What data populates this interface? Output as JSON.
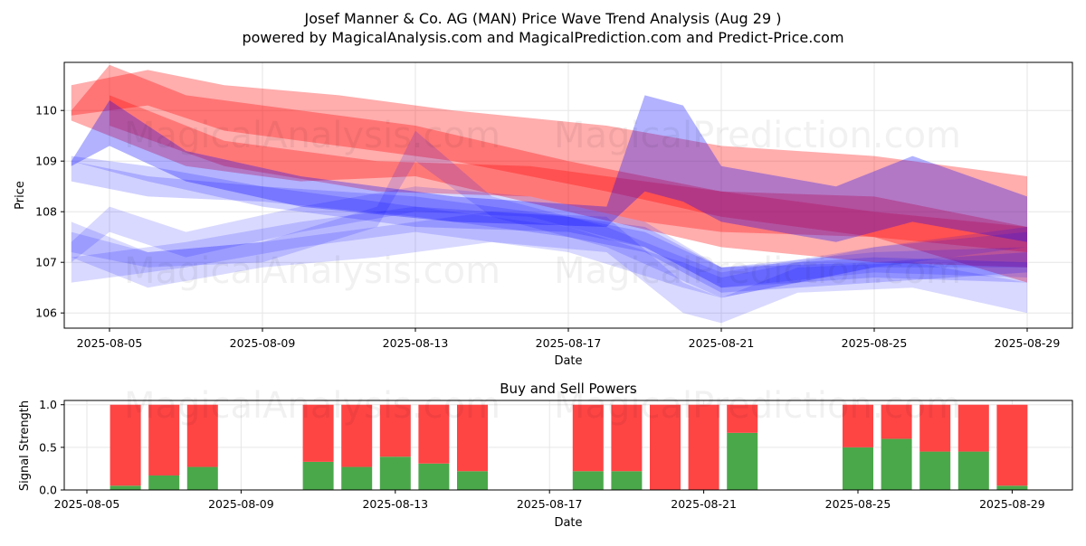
{
  "header": {
    "title": "Josef Manner & Co. AG (MAN) Price Wave Trend Analysis (Aug 29 )",
    "subtitle": "powered by MagicalAnalysis.com and MagicalPrediction.com and Predict-Price.com"
  },
  "watermarks": {
    "left": "MagicalAnalysis.com",
    "right": "MagicalPrediction.com"
  },
  "colors": {
    "red_band": "#ff0000",
    "blue_band": "#0000ff",
    "buy": "#4aa84a",
    "sell": "#ff4444",
    "grid": "#e6e6e6"
  },
  "chart_data": [
    {
      "type": "area",
      "title": "",
      "xlabel": "Date",
      "ylabel": "Price",
      "ylim": [
        105.7,
        110.95
      ],
      "y_ticks": [
        "106",
        "107",
        "108",
        "109",
        "110"
      ],
      "x_ticks": [
        "2025-08-05",
        "2025-08-09",
        "2025-08-13",
        "2025-08-17",
        "2025-08-21",
        "2025-08-25",
        "2025-08-29"
      ],
      "grid": true,
      "series": [
        {
          "color": "red",
          "opacity": 0.32,
          "points": [
            [
              "2025-08-04",
              109.9,
              110.5
            ],
            [
              "2025-08-06",
              110.1,
              110.8
            ],
            [
              "2025-08-08",
              109.6,
              110.5
            ],
            [
              "2025-08-11",
              109.3,
              110.3
            ],
            [
              "2025-08-14",
              109.0,
              110.0
            ],
            [
              "2025-08-18",
              108.4,
              109.7
            ],
            [
              "2025-08-21",
              107.9,
              109.3
            ],
            [
              "2025-08-25",
              107.5,
              109.1
            ],
            [
              "2025-08-29",
              106.6,
              108.7
            ]
          ]
        },
        {
          "color": "red",
          "opacity": 0.32,
          "points": [
            [
              "2025-08-04",
              109.8,
              110.0
            ],
            [
              "2025-08-05",
              109.5,
              110.9
            ],
            [
              "2025-08-07",
              108.9,
              110.3
            ],
            [
              "2025-08-10",
              108.6,
              110.0
            ],
            [
              "2025-08-13",
              108.7,
              109.7
            ],
            [
              "2025-08-17",
              108.0,
              109.0
            ],
            [
              "2025-08-21",
              107.3,
              108.4
            ],
            [
              "2025-08-25",
              107.0,
              108.3
            ],
            [
              "2025-08-29",
              106.9,
              107.7
            ]
          ]
        },
        {
          "color": "red",
          "opacity": 0.3,
          "points": [
            [
              "2025-08-05",
              109.7,
              110.3
            ],
            [
              "2025-08-08",
              108.9,
              109.4
            ],
            [
              "2025-08-12",
              108.4,
              109.0
            ],
            [
              "2025-08-16",
              108.3,
              108.9
            ],
            [
              "2025-08-19",
              107.8,
              108.6
            ],
            [
              "2025-08-21",
              107.6,
              108.4
            ],
            [
              "2025-08-25",
              107.5,
              108.0
            ],
            [
              "2025-08-29",
              107.2,
              107.7
            ]
          ]
        },
        {
          "color": "blue",
          "opacity": 0.3,
          "points": [
            [
              "2025-08-04",
              108.9,
              109.0
            ],
            [
              "2025-08-05",
              109.3,
              110.2
            ],
            [
              "2025-08-07",
              108.6,
              109.2
            ],
            [
              "2025-08-10",
              108.1,
              108.7
            ],
            [
              "2025-08-14",
              107.8,
              108.3
            ],
            [
              "2025-08-18",
              107.7,
              108.1
            ],
            [
              "2025-08-19",
              108.4,
              110.3
            ],
            [
              "2025-08-20",
              108.2,
              110.1
            ],
            [
              "2025-08-21",
              107.8,
              108.9
            ],
            [
              "2025-08-24",
              107.4,
              108.5
            ],
            [
              "2025-08-26",
              107.8,
              109.1
            ],
            [
              "2025-08-29",
              107.4,
              108.3
            ]
          ]
        },
        {
          "color": "blue",
          "opacity": 0.18,
          "points": [
            [
              "2025-08-04",
              108.6,
              109.0
            ],
            [
              "2025-08-06",
              108.3,
              108.7
            ],
            [
              "2025-08-09",
              108.2,
              108.5
            ],
            [
              "2025-08-13",
              107.9,
              108.3
            ],
            [
              "2025-08-17",
              107.5,
              107.9
            ],
            [
              "2025-08-19",
              107.2,
              107.6
            ],
            [
              "2025-08-21",
              106.4,
              106.9
            ],
            [
              "2025-08-25",
              106.6,
              107.0
            ],
            [
              "2025-08-29",
              106.8,
              107.2
            ]
          ]
        },
        {
          "color": "blue",
          "opacity": 0.15,
          "points": [
            [
              "2025-08-04",
              107.1,
              107.8
            ],
            [
              "2025-08-06",
              106.5,
              107.2
            ],
            [
              "2025-08-09",
              106.9,
              107.4
            ],
            [
              "2025-08-12",
              107.1,
              107.7
            ],
            [
              "2025-08-15",
              107.4,
              108.0
            ],
            [
              "2025-08-18",
              107.2,
              107.9
            ],
            [
              "2025-08-20",
              106.0,
              106.6
            ],
            [
              "2025-08-21",
              105.8,
              106.3
            ],
            [
              "2025-08-23",
              106.4,
              106.9
            ],
            [
              "2025-08-26",
              106.5,
              107.0
            ],
            [
              "2025-08-29",
              106.0,
              106.6
            ]
          ]
        },
        {
          "color": "blue",
          "opacity": 0.15,
          "points": [
            [
              "2025-08-04",
              106.6,
              107.1
            ],
            [
              "2025-08-07",
              106.9,
              107.4
            ],
            [
              "2025-08-10",
              107.3,
              107.8
            ],
            [
              "2025-08-13",
              107.6,
              108.1
            ],
            [
              "2025-08-17",
              107.2,
              107.7
            ],
            [
              "2025-08-20",
              106.5,
              107.0
            ],
            [
              "2025-08-21",
              106.3,
              106.7
            ],
            [
              "2025-08-25",
              106.9,
              107.3
            ],
            [
              "2025-08-29",
              106.9,
              107.6
            ]
          ]
        },
        {
          "color": "blue",
          "opacity": 0.15,
          "points": [
            [
              "2025-08-04",
              107.0,
              107.4
            ],
            [
              "2025-08-05",
              107.6,
              108.1
            ],
            [
              "2025-08-07",
              107.1,
              107.6
            ],
            [
              "2025-08-10",
              107.6,
              108.1
            ],
            [
              "2025-08-13",
              108.0,
              108.5
            ],
            [
              "2025-08-16",
              107.9,
              108.3
            ],
            [
              "2025-08-19",
              107.3,
              107.8
            ],
            [
              "2025-08-21",
              106.5,
              106.9
            ],
            [
              "2025-08-25",
              106.8,
              107.2
            ],
            [
              "2025-08-29",
              106.7,
              107.3
            ]
          ]
        },
        {
          "color": "blue",
          "opacity": 0.18,
          "points": [
            [
              "2025-08-04",
              109.0,
              109.1
            ],
            [
              "2025-08-06",
              108.6,
              108.9
            ],
            [
              "2025-08-09",
              108.1,
              108.5
            ],
            [
              "2025-08-13",
              107.7,
              108.1
            ],
            [
              "2025-08-17",
              107.6,
              107.9
            ],
            [
              "2025-08-19",
              107.3,
              107.7
            ],
            [
              "2025-08-21",
              106.5,
              106.9
            ],
            [
              "2025-08-25",
              106.7,
              107.1
            ],
            [
              "2025-08-29",
              106.6,
              107.0
            ]
          ]
        },
        {
          "color": "blue",
          "opacity": 0.15,
          "points": [
            [
              "2025-08-04",
              107.2,
              107.6
            ],
            [
              "2025-08-06",
              106.9,
              107.2
            ],
            [
              "2025-08-09",
              107.0,
              107.4
            ],
            [
              "2025-08-12",
              107.7,
              108.1
            ],
            [
              "2025-08-13",
              109.0,
              109.6
            ],
            [
              "2025-08-15",
              107.9,
              108.3
            ],
            [
              "2025-08-18",
              107.3,
              107.7
            ],
            [
              "2025-08-21",
              106.3,
              106.8
            ],
            [
              "2025-08-25",
              106.9,
              107.3
            ],
            [
              "2025-08-29",
              107.3,
              107.7
            ]
          ]
        }
      ]
    },
    {
      "type": "bar",
      "title": "Buy and Sell Powers",
      "xlabel": "Date",
      "ylabel": "Signal Strength",
      "ylim": [
        0,
        1.05
      ],
      "y_ticks": [
        "0.0",
        "0.5",
        "1.0"
      ],
      "x_ticks": [
        "2025-08-05",
        "2025-08-09",
        "2025-08-13",
        "2025-08-17",
        "2025-08-21",
        "2025-08-25",
        "2025-08-29"
      ],
      "grid": true,
      "categories": [
        "2025-08-06",
        "2025-08-07",
        "2025-08-08",
        "2025-08-11",
        "2025-08-12",
        "2025-08-13",
        "2025-08-14",
        "2025-08-15",
        "2025-08-18",
        "2025-08-19",
        "2025-08-20",
        "2025-08-21",
        "2025-08-22",
        "2025-08-25",
        "2025-08-26",
        "2025-08-27",
        "2025-08-28",
        "2025-08-29"
      ],
      "series": [
        {
          "values": [
            0.05,
            0.17,
            0.27,
            0.33,
            0.27,
            0.39,
            0.31,
            0.22,
            0.22,
            0.22,
            0.0,
            0.0,
            0.67,
            0.5,
            0.6,
            0.45,
            0.45,
            0.05
          ]
        },
        {
          "values": [
            0.95,
            0.83,
            0.73,
            0.67,
            0.73,
            0.61,
            0.69,
            0.78,
            0.78,
            0.78,
            1.0,
            1.0,
            0.33,
            0.5,
            0.4,
            0.55,
            0.55,
            0.95
          ]
        }
      ]
    }
  ]
}
